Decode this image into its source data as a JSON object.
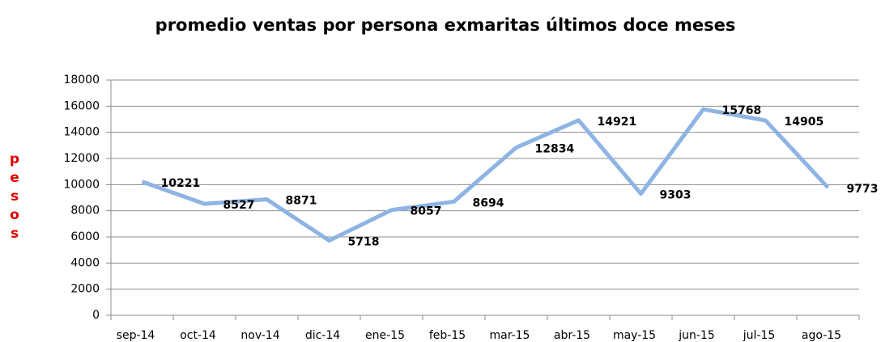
{
  "chart_data": {
    "type": "line",
    "title": "promedio ventas por persona exmaritas últimos doce meses",
    "y_label": "pesos",
    "categories": [
      "sep-14",
      "oct-14",
      "nov-14",
      "dic-14",
      "ene-15",
      "feb-15",
      "mar-15",
      "abr-15",
      "may-15",
      "jun-15",
      "jul-15",
      "ago-15"
    ],
    "values": [
      10221,
      8527,
      8871,
      5718,
      8057,
      8694,
      12834,
      14921,
      9303,
      15768,
      14905,
      9773
    ],
    "color": "#8eb4e3",
    "ylim": [
      0,
      18000
    ],
    "yticks": [
      0,
      2000,
      4000,
      6000,
      8000,
      10000,
      12000,
      14000,
      16000,
      18000
    ],
    "grid": true
  }
}
